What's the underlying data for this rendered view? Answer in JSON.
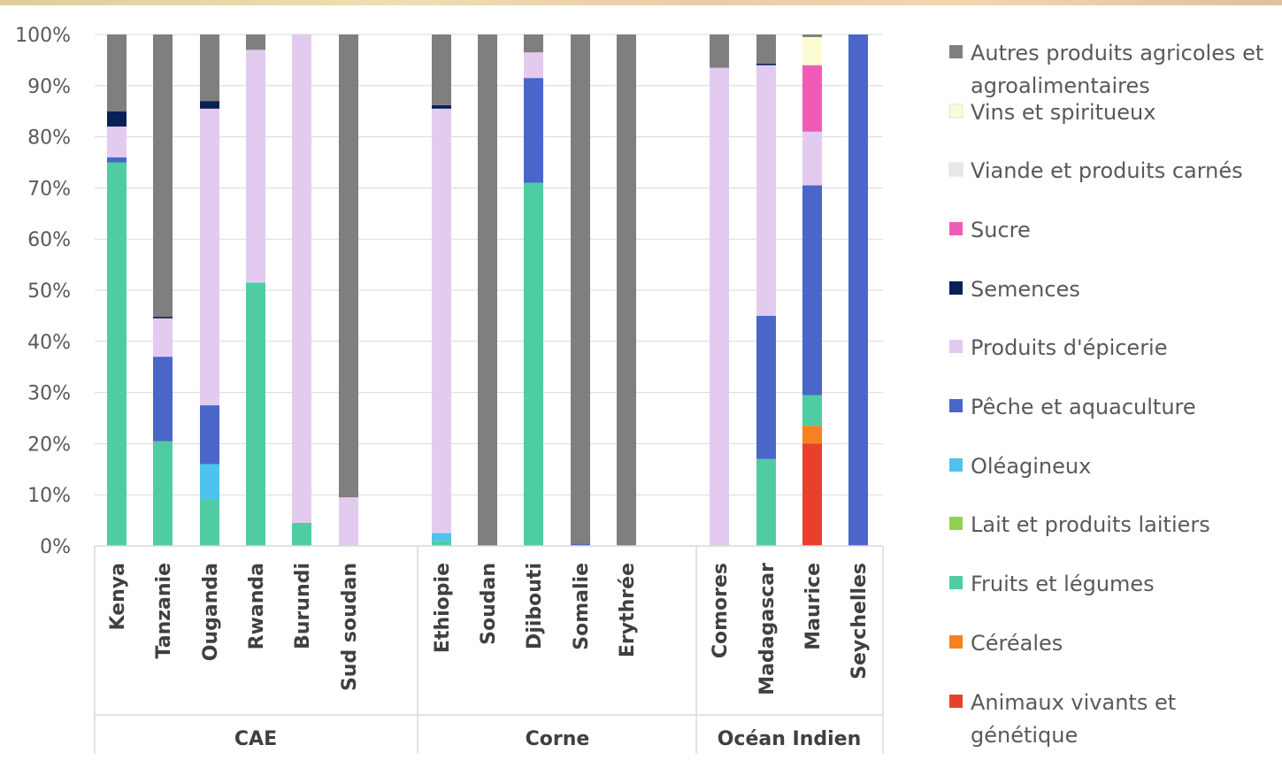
{
  "chart_data": {
    "type": "bar",
    "stacked": true,
    "percent": true,
    "title": "",
    "xlabel": "",
    "ylabel": "",
    "ylim": [
      0,
      100
    ],
    "yticks": [
      "0%",
      "10%",
      "20%",
      "30%",
      "40%",
      "50%",
      "60%",
      "70%",
      "80%",
      "90%",
      "100%"
    ],
    "grid": true,
    "legend_position": "right",
    "categories": [
      "Kenya",
      "Tanzanie",
      "Ouganda",
      "Rwanda",
      "Burundi",
      "Sud soudan",
      "Ethiopie",
      "Soudan",
      "Djibouti",
      "Somalie",
      "Erythrée",
      "Comores",
      "Madagascar",
      "Maurice",
      "Seychelles"
    ],
    "groups": [
      {
        "name": "CAE",
        "categories": [
          "Kenya",
          "Tanzanie",
          "Ouganda",
          "Rwanda",
          "Burundi",
          "Sud soudan"
        ]
      },
      {
        "name": "Corne",
        "categories": [
          "Ethiopie",
          "Soudan",
          "Djibouti",
          "Somalie",
          "Erythrée"
        ]
      },
      {
        "name": "Océan Indien",
        "categories": [
          "Comores",
          "Madagascar",
          "Maurice",
          "Seychelles"
        ]
      }
    ],
    "series": [
      {
        "name": "Animaux vivants et génétique",
        "color": "#e8402a",
        "values": [
          0,
          0,
          0,
          0,
          0,
          0,
          0,
          0,
          0,
          0,
          0,
          0,
          0,
          20,
          0
        ]
      },
      {
        "name": "Céréales",
        "color": "#f58220",
        "values": [
          0,
          0,
          0,
          0,
          0,
          0,
          0,
          0,
          0,
          0,
          0,
          0,
          0,
          3.5,
          0
        ]
      },
      {
        "name": "Fruits et légumes",
        "color": "#4fcca3",
        "values": [
          75,
          20.5,
          9,
          51.5,
          4.5,
          0,
          1,
          0,
          71,
          0,
          0,
          0,
          17,
          6,
          0
        ]
      },
      {
        "name": "Lait et produits laitiers",
        "color": "#92d050",
        "values": [
          0,
          0,
          0,
          0,
          0,
          0,
          0,
          0,
          0,
          0,
          0,
          0,
          0,
          0,
          0
        ]
      },
      {
        "name": "Oléagineux",
        "color": "#4dc3ee",
        "values": [
          0,
          0,
          7,
          0,
          0,
          0,
          1.5,
          0,
          0,
          0,
          0,
          0,
          0,
          0,
          0
        ]
      },
      {
        "name": "Pêche et aquaculture",
        "color": "#4a66c8",
        "values": [
          1,
          16.5,
          11.5,
          0,
          0,
          0,
          0,
          0,
          20.5,
          0.5,
          0,
          0,
          28,
          41,
          100
        ]
      },
      {
        "name": "Produits d'épicerie",
        "color": "#e3cbf0",
        "values": [
          6,
          7.5,
          58,
          45.5,
          95.5,
          9.5,
          83,
          0,
          5,
          0,
          0,
          93.5,
          49,
          10.5,
          0
        ]
      },
      {
        "name": "Semences",
        "color": "#0a1f55",
        "values": [
          3,
          0.3,
          1.5,
          0,
          0,
          0,
          0.7,
          0,
          0,
          0,
          0,
          0,
          0.3,
          0,
          0
        ]
      },
      {
        "name": "Sucre",
        "color": "#f05bb5",
        "values": [
          0,
          0,
          0,
          0,
          0,
          0,
          0,
          0,
          0,
          0,
          0,
          0,
          0,
          13,
          0
        ]
      },
      {
        "name": "Viande et produits carnés",
        "color": "#e8e8ea",
        "values": [
          0,
          0,
          0,
          0,
          0,
          0,
          0,
          0,
          0,
          0,
          0,
          0,
          0,
          0,
          0
        ]
      },
      {
        "name": "Vins et spiritueux",
        "color": "#fdfbd3",
        "values": [
          0,
          0,
          0,
          0,
          0,
          0,
          0,
          0,
          0,
          0,
          0,
          0,
          0,
          5.5,
          0
        ]
      },
      {
        "name": "Autres produits agricoles et agroalimentaires",
        "color": "#7f7f7f",
        "values": [
          15,
          55.2,
          13,
          3,
          0,
          90.5,
          13.8,
          100,
          3.5,
          99.5,
          100,
          6.5,
          5.7,
          0.5,
          0
        ]
      }
    ],
    "legend": [
      {
        "lines": [
          "Autres produits agricoles et",
          "agroalimentaires"
        ],
        "color": "#7f7f7f"
      },
      {
        "lines": [
          "Vins et spiritueux"
        ],
        "color": "#fdfbd3"
      },
      {
        "lines": [
          "Viande et produits carnés"
        ],
        "color": "#e8e8ea"
      },
      {
        "lines": [
          "Sucre"
        ],
        "color": "#f05bb5"
      },
      {
        "lines": [
          "Semences"
        ],
        "color": "#0a1f55"
      },
      {
        "lines": [
          "Produits d'épicerie"
        ],
        "color": "#e3cbf0"
      },
      {
        "lines": [
          "Pêche et aquaculture"
        ],
        "color": "#4a66c8"
      },
      {
        "lines": [
          "Oléagineux"
        ],
        "color": "#4dc3ee"
      },
      {
        "lines": [
          "Lait et produits laitiers"
        ],
        "color": "#92d050"
      },
      {
        "lines": [
          "Fruits et légumes"
        ],
        "color": "#4fcca3"
      },
      {
        "lines": [
          "Céréales"
        ],
        "color": "#f58220"
      },
      {
        "lines": [
          "Animaux vivants et",
          "génétique"
        ],
        "color": "#e8402a"
      }
    ]
  }
}
